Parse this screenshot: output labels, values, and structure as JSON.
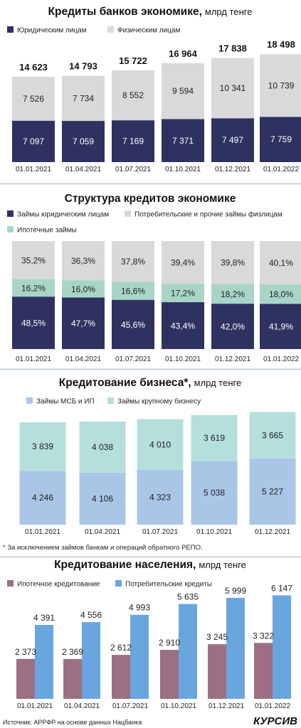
{
  "colors": {
    "navy": "#2f3260",
    "light_gray": "#d9d9d9",
    "teal": "#a8d5c8",
    "light_blue": "#a9c6e7",
    "light_teal": "#b5dfdd",
    "mauve": "#9c6f84",
    "blue": "#6aa6de",
    "divider": "#c9d3dd"
  },
  "source": "Источник: АРРФР на основе данных Нацбанка",
  "logo": "КУРСИВ",
  "chart_data": [
    {
      "type": "bar",
      "stacked": true,
      "title": "Кредиты банков экономике,",
      "title_unit": "млрд тенге",
      "categories": [
        "01.01.2021",
        "01.04.2021",
        "01.07.2021",
        "01.10.2021",
        "01.12.2021",
        "01.01.2022"
      ],
      "series": [
        {
          "name": "Юридическим лицам",
          "color": "#2f3260",
          "values": [
            7097,
            7059,
            7169,
            7371,
            7497,
            7759
          ],
          "labels": [
            "7 097",
            "7 059",
            "7 169",
            "7 371",
            "7 497",
            "7 759"
          ]
        },
        {
          "name": "Физическим лицам",
          "color": "#d9d9d9",
          "values": [
            7526,
            7734,
            8552,
            9594,
            10341,
            10739
          ],
          "labels": [
            "7 526",
            "7 734",
            "8 552",
            "9 594",
            "10 341",
            "10 739"
          ]
        }
      ],
      "totals": [
        "14 623",
        "14 793",
        "15 722",
        "16 964",
        "17 838",
        "18 498"
      ],
      "ylim": [
        0,
        20000
      ]
    },
    {
      "type": "bar",
      "stacked": true,
      "title": "Структура кредитов экономике",
      "title_unit": "",
      "categories": [
        "01.01.2021",
        "01.04.2021",
        "01.07.2021",
        "01.10.2021",
        "01.12.2021",
        "01.01.2022"
      ],
      "series": [
        {
          "name": "Займы юридическим лицам",
          "color": "#2f3260",
          "values": [
            48.5,
            47.7,
            45.6,
            43.4,
            42.0,
            41.9
          ],
          "labels": [
            "48,5%",
            "47,7%",
            "45,6%",
            "43,4%",
            "42,0%",
            "41,9%"
          ]
        },
        {
          "name": "Ипотечные займы",
          "color": "#a8d5c8",
          "values": [
            16.2,
            16.0,
            16.6,
            17.2,
            18.2,
            18.0
          ],
          "labels": [
            "16,2%",
            "16,0%",
            "16,6%",
            "17,2%",
            "18,2%",
            "18,0%"
          ]
        },
        {
          "name": "Потребительские и прочие займы физлицам",
          "color": "#d9d9d9",
          "values": [
            35.2,
            36.3,
            37.8,
            39.4,
            39.8,
            40.1
          ],
          "labels": [
            "35,2%",
            "36,3%",
            "37,8%",
            "39,4%",
            "39,8%",
            "40,1%"
          ]
        }
      ],
      "ylim": [
        0,
        100
      ]
    },
    {
      "type": "bar",
      "stacked": true,
      "title": "Кредитование бизнеса*,",
      "title_unit": "млрд тенге",
      "categories": [
        "01.01.2021",
        "01.04.2021",
        "01.07.2021",
        "01.10.2021",
        "01.12.2021"
      ],
      "series": [
        {
          "name": "Займы МСБ и ИП",
          "color": "#a9c6e7",
          "values": [
            4246,
            4106,
            4323,
            5038,
            5227
          ],
          "labels": [
            "4 246",
            "4 106",
            "4 323",
            "5 038",
            "5 227"
          ]
        },
        {
          "name": "Займы крупному бизнесу",
          "color": "#b5dfdd",
          "values": [
            3839,
            4038,
            4010,
            3619,
            3665
          ],
          "labels": [
            "3 839",
            "4 038",
            "4 010",
            "3 619",
            "3 665"
          ]
        }
      ],
      "footnote": "* За исключением займов банкам и операций обратного РЕПО.",
      "ylim": [
        0,
        9500
      ]
    },
    {
      "type": "bar",
      "stacked": false,
      "title": "Кредитование населения,",
      "title_unit": "млрд тенге",
      "categories": [
        "01.01.2021",
        "01.04.2021",
        "01.07.2021",
        "01.10.2021",
        "01.12.2021",
        "01.01.2022"
      ],
      "series": [
        {
          "name": "Ипотечное кредитование",
          "color": "#9c6f84",
          "values": [
            2373,
            2369,
            2612,
            2910,
            3245,
            3322
          ],
          "labels": [
            "2 373",
            "2 369",
            "2 612",
            "2 910",
            "3 245",
            "3 322"
          ]
        },
        {
          "name": "Потребительские кредиты",
          "color": "#6aa6de",
          "values": [
            4391,
            4556,
            4993,
            5635,
            5999,
            6147
          ],
          "labels": [
            "4 391",
            "4 556",
            "4 993",
            "5 635",
            "5 999",
            "6 147"
          ]
        }
      ],
      "ylim": [
        0,
        6200
      ]
    }
  ]
}
